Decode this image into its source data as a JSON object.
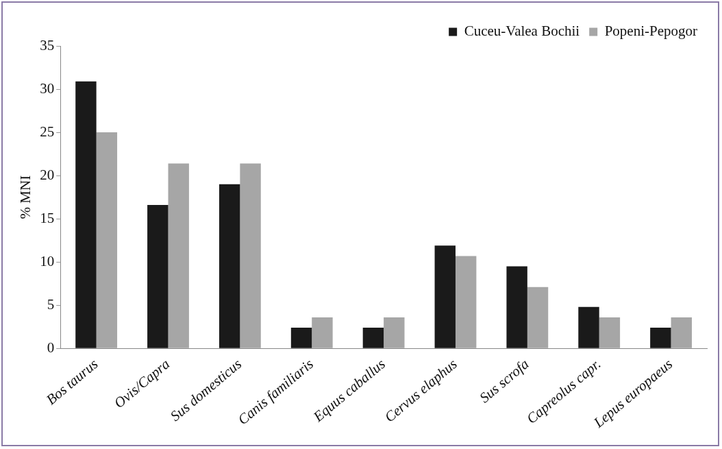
{
  "chart_data": {
    "type": "bar",
    "ylabel": "% MNI",
    "categories": [
      "Bos taurus",
      "Ovis/Capra",
      "Sus domesticus",
      "Canis familiaris",
      "Equus caballus",
      "Cervus elaphus",
      "Sus scrofa",
      "Capreolus capr.",
      "Lepus europaeus"
    ],
    "series": [
      {
        "name": "Cuceu-Valea Bochii",
        "color": "#1a1a1a",
        "values": [
          30.9,
          16.6,
          19.0,
          2.4,
          2.4,
          11.9,
          9.5,
          4.8,
          2.4
        ]
      },
      {
        "name": "Popeni-Pepogor",
        "color": "#a6a6a6",
        "values": [
          25.0,
          21.4,
          21.4,
          3.6,
          3.6,
          10.7,
          7.1,
          3.6,
          3.6
        ]
      }
    ],
    "ylim": [
      0,
      35
    ],
    "yticks": [
      0,
      5,
      10,
      15,
      20,
      25,
      30,
      35
    ],
    "grid": false,
    "legend": "top right"
  }
}
